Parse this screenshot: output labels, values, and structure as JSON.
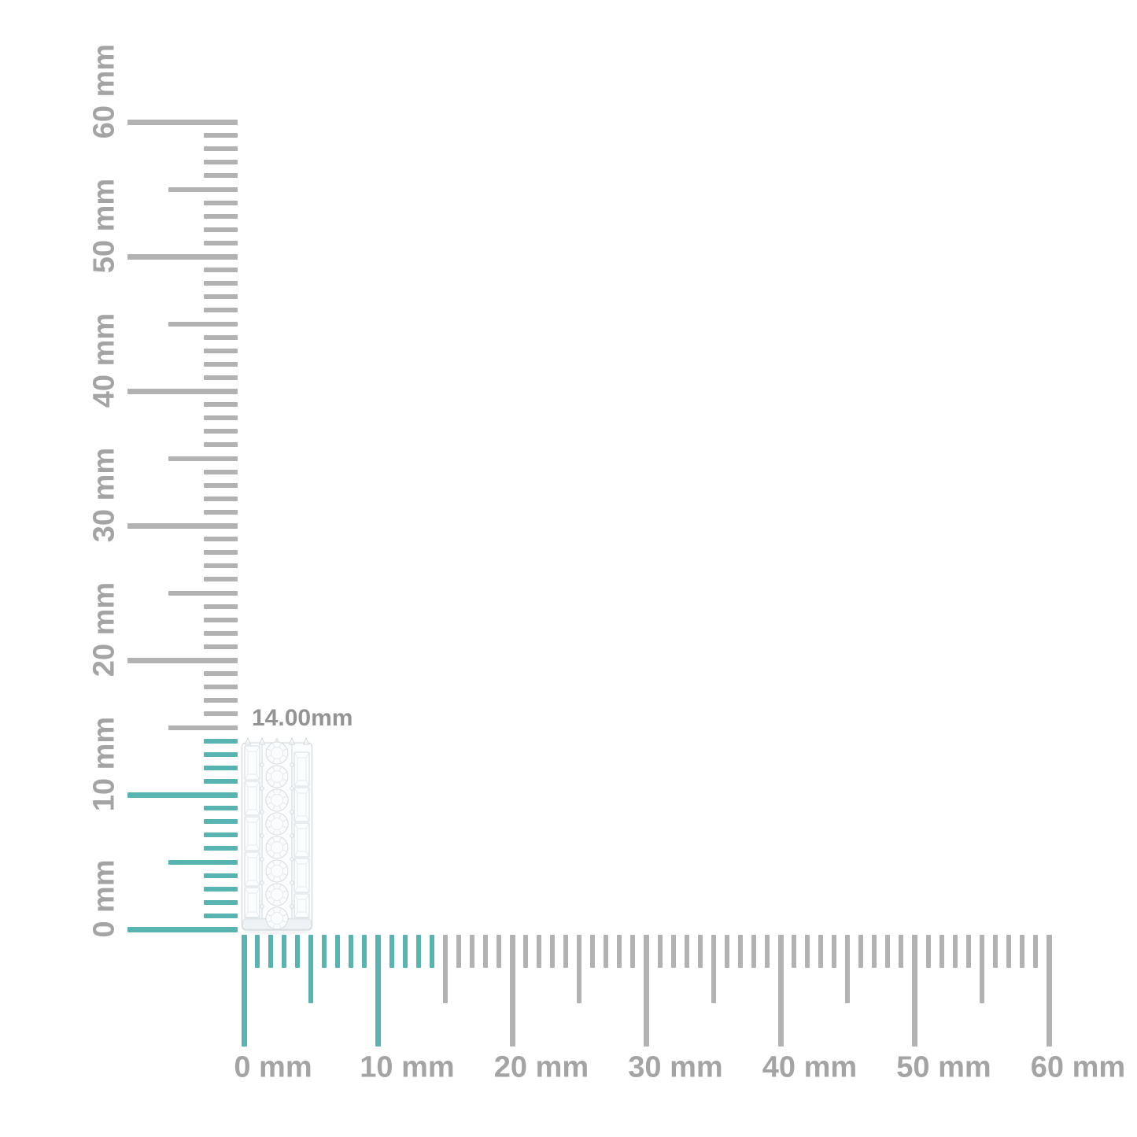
{
  "page": {
    "description": "Jewelry product size-guide image with millimeter rulers",
    "background": "#ffffff"
  },
  "measurement": {
    "label": "14.00mm",
    "value_mm": 14
  },
  "product": {
    "name": "diamond-band",
    "alt": "White band set with round and baguette diamonds shown against the rulers",
    "height_mm": 14
  },
  "rulers": {
    "vertical": {
      "unit": "mm",
      "min_mm": 0,
      "max_mm": 60,
      "tick_step_mm": 1,
      "mid_tick_every_mm": 5,
      "major_tick_every_mm": 10,
      "label_step_mm": 10,
      "highlight_to_mm": 14,
      "labels": [
        "0 mm",
        "10 mm",
        "20 mm",
        "30 mm",
        "40 mm",
        "50 mm",
        "60 mm"
      ]
    },
    "horizontal": {
      "unit": "mm",
      "min_mm": 0,
      "max_mm": 60,
      "tick_step_mm": 1,
      "mid_tick_every_mm": 5,
      "major_tick_every_mm": 10,
      "label_step_mm": 10,
      "highlight_to_mm": 14,
      "labels": [
        "0 mm",
        "10 mm",
        "20 mm",
        "30 mm",
        "40 mm",
        "50 mm",
        "60 mm"
      ]
    }
  },
  "colors": {
    "tick_gray": "#b2b2b2",
    "label_gray": "#a4a4a4",
    "highlight_teal": "#58b4b1",
    "measurement_label_gray": "#949494",
    "background": "#ffffff"
  }
}
